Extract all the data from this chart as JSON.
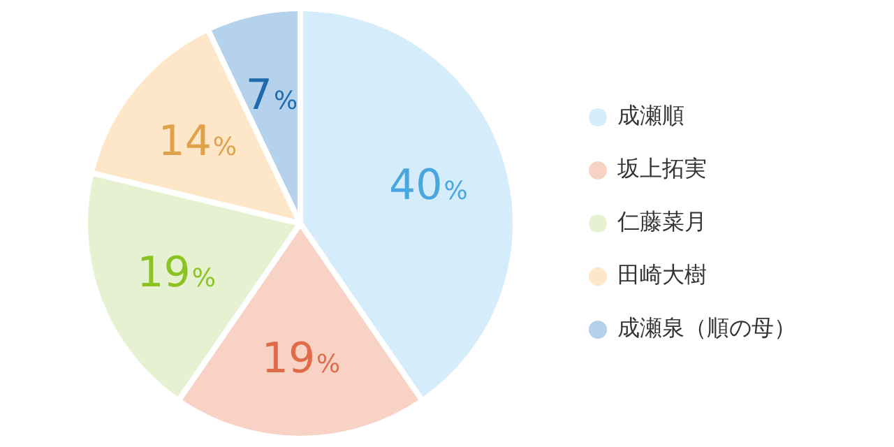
{
  "chart_data": {
    "type": "pie",
    "categories": [
      "成瀬順",
      "坂上拓実",
      "仁藤菜月",
      "田崎大樹",
      "成瀬泉（順の母）"
    ],
    "values": [
      40,
      19,
      19,
      14,
      7
    ],
    "colors": [
      "#d5ecfa",
      "#f9d2c6",
      "#e6f1d2",
      "#fde7c8",
      "#b4d2ec"
    ],
    "value_labels": [
      "40%",
      "19%",
      "19%",
      "14%",
      "7%"
    ],
    "legend": "right"
  }
}
